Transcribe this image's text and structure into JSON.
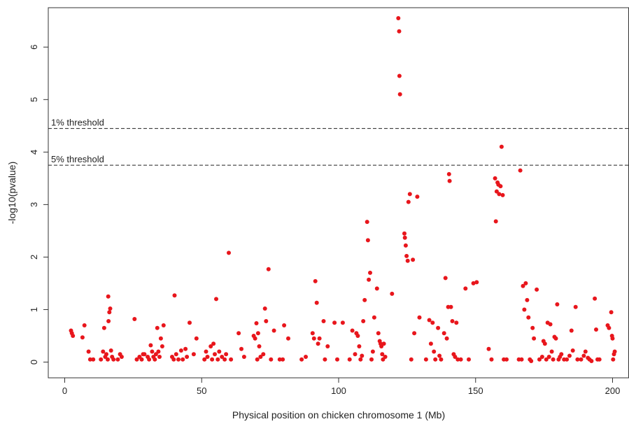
{
  "chart_data": {
    "type": "scatter",
    "xlabel": "Physical position on chicken chromosome 1 (Mb)",
    "ylabel": "-log10(pvalue)",
    "xlim": [
      -6,
      206
    ],
    "ylim": [
      -0.3,
      6.75
    ],
    "xticks": [
      0,
      50,
      100,
      150,
      200
    ],
    "yticks": [
      0,
      1,
      2,
      3,
      4,
      5,
      6
    ],
    "grid": false,
    "point_color": "#e8161c",
    "thresholds": [
      {
        "label": "1% threshold",
        "value": 4.45
      },
      {
        "label": "5% threshold",
        "value": 3.75
      }
    ],
    "series": [
      {
        "points": [
          [
            2.3,
            0.6
          ],
          [
            2.6,
            0.55
          ],
          [
            3,
            0.5
          ],
          [
            6.5,
            0.47
          ],
          [
            7.2,
            0.7
          ],
          [
            8.7,
            0.2
          ],
          [
            9.3,
            0.05
          ],
          [
            10.4,
            0.05
          ],
          [
            13.2,
            0.05
          ],
          [
            14,
            0.2
          ],
          [
            14.4,
            0.65
          ],
          [
            14.8,
            0.1
          ],
          [
            15.2,
            0.15
          ],
          [
            15.7,
            0.05
          ],
          [
            15.9,
            1.25
          ],
          [
            16,
            0.78
          ],
          [
            16.3,
            0.95
          ],
          [
            16.6,
            1.02
          ],
          [
            16.9,
            0.22
          ],
          [
            17.3,
            0.1
          ],
          [
            17.8,
            0.05
          ],
          [
            19.4,
            0.05
          ],
          [
            20.2,
            0.15
          ],
          [
            20.8,
            0.1
          ],
          [
            25.5,
            0.82
          ],
          [
            26.3,
            0.05
          ],
          [
            27.3,
            0.1
          ],
          [
            28.1,
            0.05
          ],
          [
            28.6,
            0.15
          ],
          [
            29.1,
            0.15
          ],
          [
            30.3,
            0.1
          ],
          [
            30.8,
            0.05
          ],
          [
            31.4,
            0.32
          ],
          [
            31.9,
            0.2
          ],
          [
            32.4,
            0.1
          ],
          [
            32.9,
            0.05
          ],
          [
            33.3,
            0.15
          ],
          [
            33.8,
            0.65
          ],
          [
            34.2,
            0.2
          ],
          [
            34.6,
            0.1
          ],
          [
            35.1,
            0.45
          ],
          [
            35.6,
            0.3
          ],
          [
            36.1,
            0.7
          ],
          [
            39.2,
            0.1
          ],
          [
            39.8,
            0.05
          ],
          [
            40.1,
            1.27
          ],
          [
            40.7,
            0.15
          ],
          [
            41.5,
            0.05
          ],
          [
            42.5,
            0.22
          ],
          [
            43.1,
            0.05
          ],
          [
            44.1,
            0.25
          ],
          [
            44.6,
            0.1
          ],
          [
            45.6,
            0.75
          ],
          [
            47.1,
            0.15
          ],
          [
            48.1,
            0.45
          ],
          [
            51,
            0.05
          ],
          [
            51.6,
            0.2
          ],
          [
            52.1,
            0.1
          ],
          [
            53.3,
            0.3
          ],
          [
            53.8,
            0.05
          ],
          [
            54.3,
            0.35
          ],
          [
            54.8,
            0.15
          ],
          [
            55.3,
            1.2
          ],
          [
            55.9,
            0.05
          ],
          [
            56.4,
            0.2
          ],
          [
            57.4,
            0.1
          ],
          [
            58.4,
            0.05
          ],
          [
            58.9,
            0.15
          ],
          [
            59.9,
            2.08
          ],
          [
            60.7,
            0.05
          ],
          [
            63.5,
            0.55
          ],
          [
            64.5,
            0.25
          ],
          [
            65.5,
            0.1
          ],
          [
            69,
            0.5
          ],
          [
            69.5,
            0.45
          ],
          [
            70,
            0.74
          ],
          [
            70.3,
            0.05
          ],
          [
            70.6,
            0.55
          ],
          [
            71,
            0.3
          ],
          [
            71.5,
            0.1
          ],
          [
            72.5,
            0.15
          ],
          [
            73.1,
            1.02
          ],
          [
            73.5,
            0.78
          ],
          [
            74.4,
            1.77
          ],
          [
            75.3,
            0.05
          ],
          [
            76.4,
            0.6
          ],
          [
            78.5,
            0.05
          ],
          [
            79.6,
            0.05
          ],
          [
            80.1,
            0.7
          ],
          [
            81.6,
            0.45
          ],
          [
            86.5,
            0.05
          ],
          [
            88,
            0.1
          ],
          [
            90.5,
            0.55
          ],
          [
            91,
            0.45
          ],
          [
            91.5,
            1.54
          ],
          [
            92,
            1.13
          ],
          [
            92.5,
            0.35
          ],
          [
            93,
            0.45
          ],
          [
            94.5,
            0.78
          ],
          [
            95,
            0.05
          ],
          [
            96,
            0.3
          ],
          [
            98.5,
            0.75
          ],
          [
            99.5,
            0.05
          ],
          [
            101.5,
            0.75
          ],
          [
            104,
            0.05
          ],
          [
            105,
            0.6
          ],
          [
            106,
            0.15
          ],
          [
            106.5,
            0.55
          ],
          [
            107,
            0.5
          ],
          [
            107.5,
            0.3
          ],
          [
            108,
            0.05
          ],
          [
            108.5,
            0.12
          ],
          [
            109,
            0.78
          ],
          [
            109.5,
            1.18
          ],
          [
            110.4,
            2.67
          ],
          [
            110.7,
            2.32
          ],
          [
            111,
            1.57
          ],
          [
            111.5,
            1.7
          ],
          [
            112,
            0.05
          ],
          [
            112.5,
            0.2
          ],
          [
            113,
            0.85
          ],
          [
            114,
            1.4
          ],
          [
            114.5,
            0.55
          ],
          [
            115,
            0.4
          ],
          [
            115.3,
            0.35
          ],
          [
            115.6,
            0.3
          ],
          [
            115.9,
            0.15
          ],
          [
            116.2,
            0.05
          ],
          [
            116.5,
            0.35
          ],
          [
            117,
            0.1
          ],
          [
            119.5,
            1.3
          ],
          [
            121.8,
            6.55
          ],
          [
            122.1,
            6.3
          ],
          [
            122.2,
            5.45
          ],
          [
            122.4,
            5.1
          ],
          [
            124,
            2.45
          ],
          [
            124.2,
            2.37
          ],
          [
            124.5,
            2.22
          ],
          [
            124.8,
            2.02
          ],
          [
            125.2,
            1.93
          ],
          [
            125.5,
            3.05
          ],
          [
            126,
            3.2
          ],
          [
            126.5,
            0.05
          ],
          [
            127.1,
            1.95
          ],
          [
            127.6,
            0.55
          ],
          [
            128.7,
            3.15
          ],
          [
            129.5,
            0.85
          ],
          [
            131.9,
            0.05
          ],
          [
            133.1,
            0.8
          ],
          [
            133.7,
            0.35
          ],
          [
            134.3,
            0.75
          ],
          [
            134.8,
            0.2
          ],
          [
            135.3,
            0.05
          ],
          [
            136.3,
            0.65
          ],
          [
            136.8,
            0.12
          ],
          [
            137.4,
            0.05
          ],
          [
            138.5,
            0.55
          ],
          [
            139,
            1.6
          ],
          [
            139.5,
            0.45
          ],
          [
            140,
            1.05
          ],
          [
            140.3,
            3.58
          ],
          [
            140.5,
            3.45
          ],
          [
            141,
            1.05
          ],
          [
            141.5,
            0.78
          ],
          [
            142,
            0.15
          ],
          [
            142.5,
            0.1
          ],
          [
            143,
            0.75
          ],
          [
            143.5,
            0.05
          ],
          [
            144.6,
            0.05
          ],
          [
            146.3,
            1.4
          ],
          [
            147.5,
            0.05
          ],
          [
            149.2,
            1.5
          ],
          [
            150.4,
            1.52
          ],
          [
            154.8,
            0.25
          ],
          [
            155.8,
            0.05
          ],
          [
            157.1,
            3.5
          ],
          [
            157.4,
            2.68
          ],
          [
            157.7,
            3.25
          ],
          [
            158,
            3.42
          ],
          [
            158.3,
            3.38
          ],
          [
            158.6,
            3.2
          ],
          [
            159.1,
            3.35
          ],
          [
            159.5,
            4.1
          ],
          [
            159.9,
            3.18
          ],
          [
            160.3,
            0.05
          ],
          [
            161.3,
            0.05
          ],
          [
            165.8,
            0.05
          ],
          [
            166.3,
            3.65
          ],
          [
            166.8,
            0.05
          ],
          [
            167.3,
            1.45
          ],
          [
            167.8,
            1.0
          ],
          [
            168.3,
            1.5
          ],
          [
            168.8,
            1.18
          ],
          [
            169.3,
            0.85
          ],
          [
            169.8,
            0.05
          ],
          [
            170.3,
            0.02
          ],
          [
            170.8,
            0.65
          ],
          [
            171.3,
            0.45
          ],
          [
            172.3,
            1.38
          ],
          [
            173.3,
            0.05
          ],
          [
            174.3,
            0.1
          ],
          [
            174.8,
            0.4
          ],
          [
            175.3,
            0.35
          ],
          [
            175.8,
            0.05
          ],
          [
            176.3,
            0.75
          ],
          [
            176.8,
            0.1
          ],
          [
            177.3,
            0.72
          ],
          [
            177.8,
            0.2
          ],
          [
            178.3,
            0.05
          ],
          [
            178.8,
            0.48
          ],
          [
            179.3,
            0.45
          ],
          [
            179.8,
            1.1
          ],
          [
            180.3,
            0.05
          ],
          [
            180.8,
            0.1
          ],
          [
            181.3,
            0.15
          ],
          [
            182.3,
            0.05
          ],
          [
            183.3,
            0.05
          ],
          [
            184.3,
            0.12
          ],
          [
            185,
            0.6
          ],
          [
            185.5,
            0.22
          ],
          [
            186.5,
            1.05
          ],
          [
            187.2,
            0.05
          ],
          [
            188.5,
            0.05
          ],
          [
            189.5,
            0.12
          ],
          [
            190.1,
            0.2
          ],
          [
            191,
            0.08
          ],
          [
            191.6,
            0.05
          ],
          [
            192.3,
            0.02
          ],
          [
            193.5,
            1.21
          ],
          [
            194,
            0.62
          ],
          [
            194.5,
            0.05
          ],
          [
            195.2,
            0.05
          ],
          [
            198.2,
            0.7
          ],
          [
            198.7,
            0.65
          ],
          [
            199.5,
            0.95
          ],
          [
            199.8,
            0.5
          ],
          [
            200,
            0.45
          ],
          [
            200.2,
            0.05
          ],
          [
            200.5,
            0.15
          ],
          [
            200.8,
            0.2
          ]
        ]
      }
    ]
  }
}
